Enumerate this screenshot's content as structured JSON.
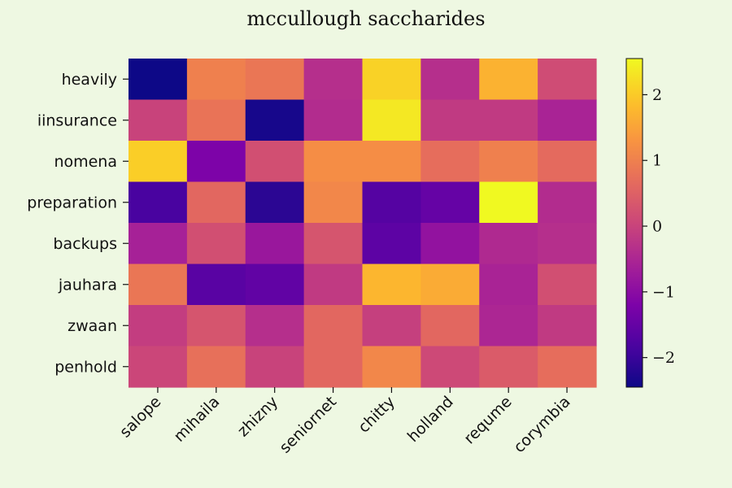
{
  "chart_data": {
    "type": "heatmap",
    "title": "mccullough saccharides",
    "xlabel": "",
    "ylabel": "",
    "columns": [
      "salope",
      "mihaila",
      "zhizny",
      "seniornet",
      "chitty",
      "holland",
      "requme",
      "corymbia"
    ],
    "rows": [
      "heavily",
      "iinsurance",
      "nomena",
      "preparation",
      "backups",
      "jauhara",
      "zwaan",
      "penhold"
    ],
    "values": [
      [
        -2.45,
        1.0,
        0.85,
        -0.35,
        2.1,
        -0.35,
        1.7,
        0.15
      ],
      [
        0.0,
        0.8,
        -2.35,
        -0.4,
        2.35,
        -0.15,
        -0.15,
        -0.55
      ],
      [
        2.05,
        -1.2,
        0.2,
        1.2,
        1.2,
        0.7,
        1.0,
        0.65
      ],
      [
        -1.85,
        0.6,
        -2.15,
        1.1,
        -1.7,
        -1.5,
        2.55,
        -0.4
      ],
      [
        -0.6,
        0.2,
        -0.8,
        0.3,
        -1.6,
        -0.9,
        -0.45,
        -0.35
      ],
      [
        0.85,
        -1.65,
        -1.55,
        -0.15,
        1.75,
        1.6,
        -0.55,
        0.2
      ],
      [
        -0.1,
        0.3,
        -0.35,
        0.6,
        -0.05,
        0.6,
        -0.5,
        -0.15
      ],
      [
        0.05,
        0.75,
        0.0,
        0.6,
        1.1,
        0.1,
        0.4,
        0.7
      ]
    ],
    "colormap": "plasma",
    "colorbar": {
      "min": -2.45,
      "max": 2.55,
      "ticks": [
        -2,
        -1,
        0,
        1,
        2
      ],
      "tick_labels": [
        "−2",
        "−1",
        "0",
        "1",
        "2"
      ]
    },
    "grid": false,
    "colors": {
      "background": "#eef8e2"
    }
  }
}
